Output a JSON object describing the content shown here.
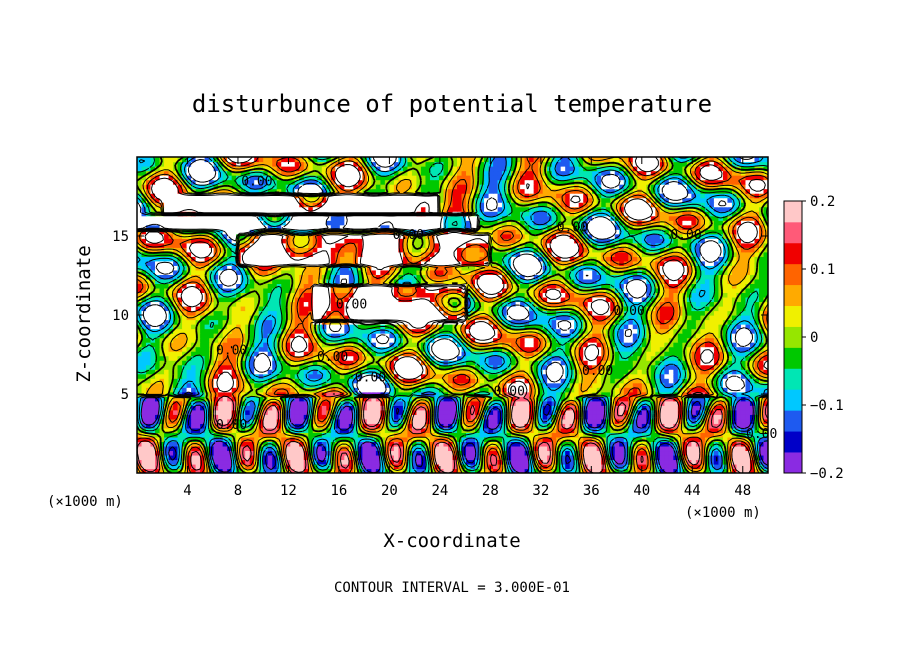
{
  "chart_data": {
    "type": "heatmap",
    "title": "disturbunce of potential temperature",
    "xlabel": "X-coordinate",
    "ylabel": "Z-coordinate",
    "x_unit": "(×1000 m)",
    "z_unit": "(×1000 m)",
    "xlim": [
      0,
      50
    ],
    "zlim": [
      0,
      20
    ],
    "x_ticks": [
      4,
      8,
      12,
      16,
      20,
      24,
      28,
      32,
      36,
      40,
      44,
      48
    ],
    "z_ticks": [
      5,
      10,
      15
    ],
    "colorbar": {
      "min": -0.2,
      "max": 0.2,
      "tick_values": [
        0.2,
        0.1,
        0,
        -0.1,
        -0.2
      ],
      "tick_labels": [
        "0.2",
        "0.1",
        "0",
        "−0.1",
        "−0.2"
      ],
      "colors": [
        "#8a2be2",
        "#0000c8",
        "#1e5af0",
        "#00c8ff",
        "#00e6b4",
        "#00c800",
        "#96e600",
        "#f0f000",
        "#ffaa00",
        "#ff6400",
        "#f00000",
        "#ff5a78",
        "#ffc8c8"
      ]
    },
    "contour_label": "0.00",
    "contour_label_positions": [
      [
        9.5,
        18.2
      ],
      [
        21.5,
        14.8
      ],
      [
        43.5,
        14.8
      ],
      [
        34.5,
        15.3
      ],
      [
        17,
        10.4
      ],
      [
        39,
        10
      ],
      [
        7.5,
        7.5
      ],
      [
        15.5,
        7.1
      ],
      [
        18.5,
        5.8
      ],
      [
        29.5,
        4.9
      ],
      [
        36.5,
        6.2
      ],
      [
        7.5,
        2.8
      ],
      [
        49.5,
        2.2
      ]
    ],
    "footer": "CONTOUR INTERVAL = 3.000E-01"
  }
}
